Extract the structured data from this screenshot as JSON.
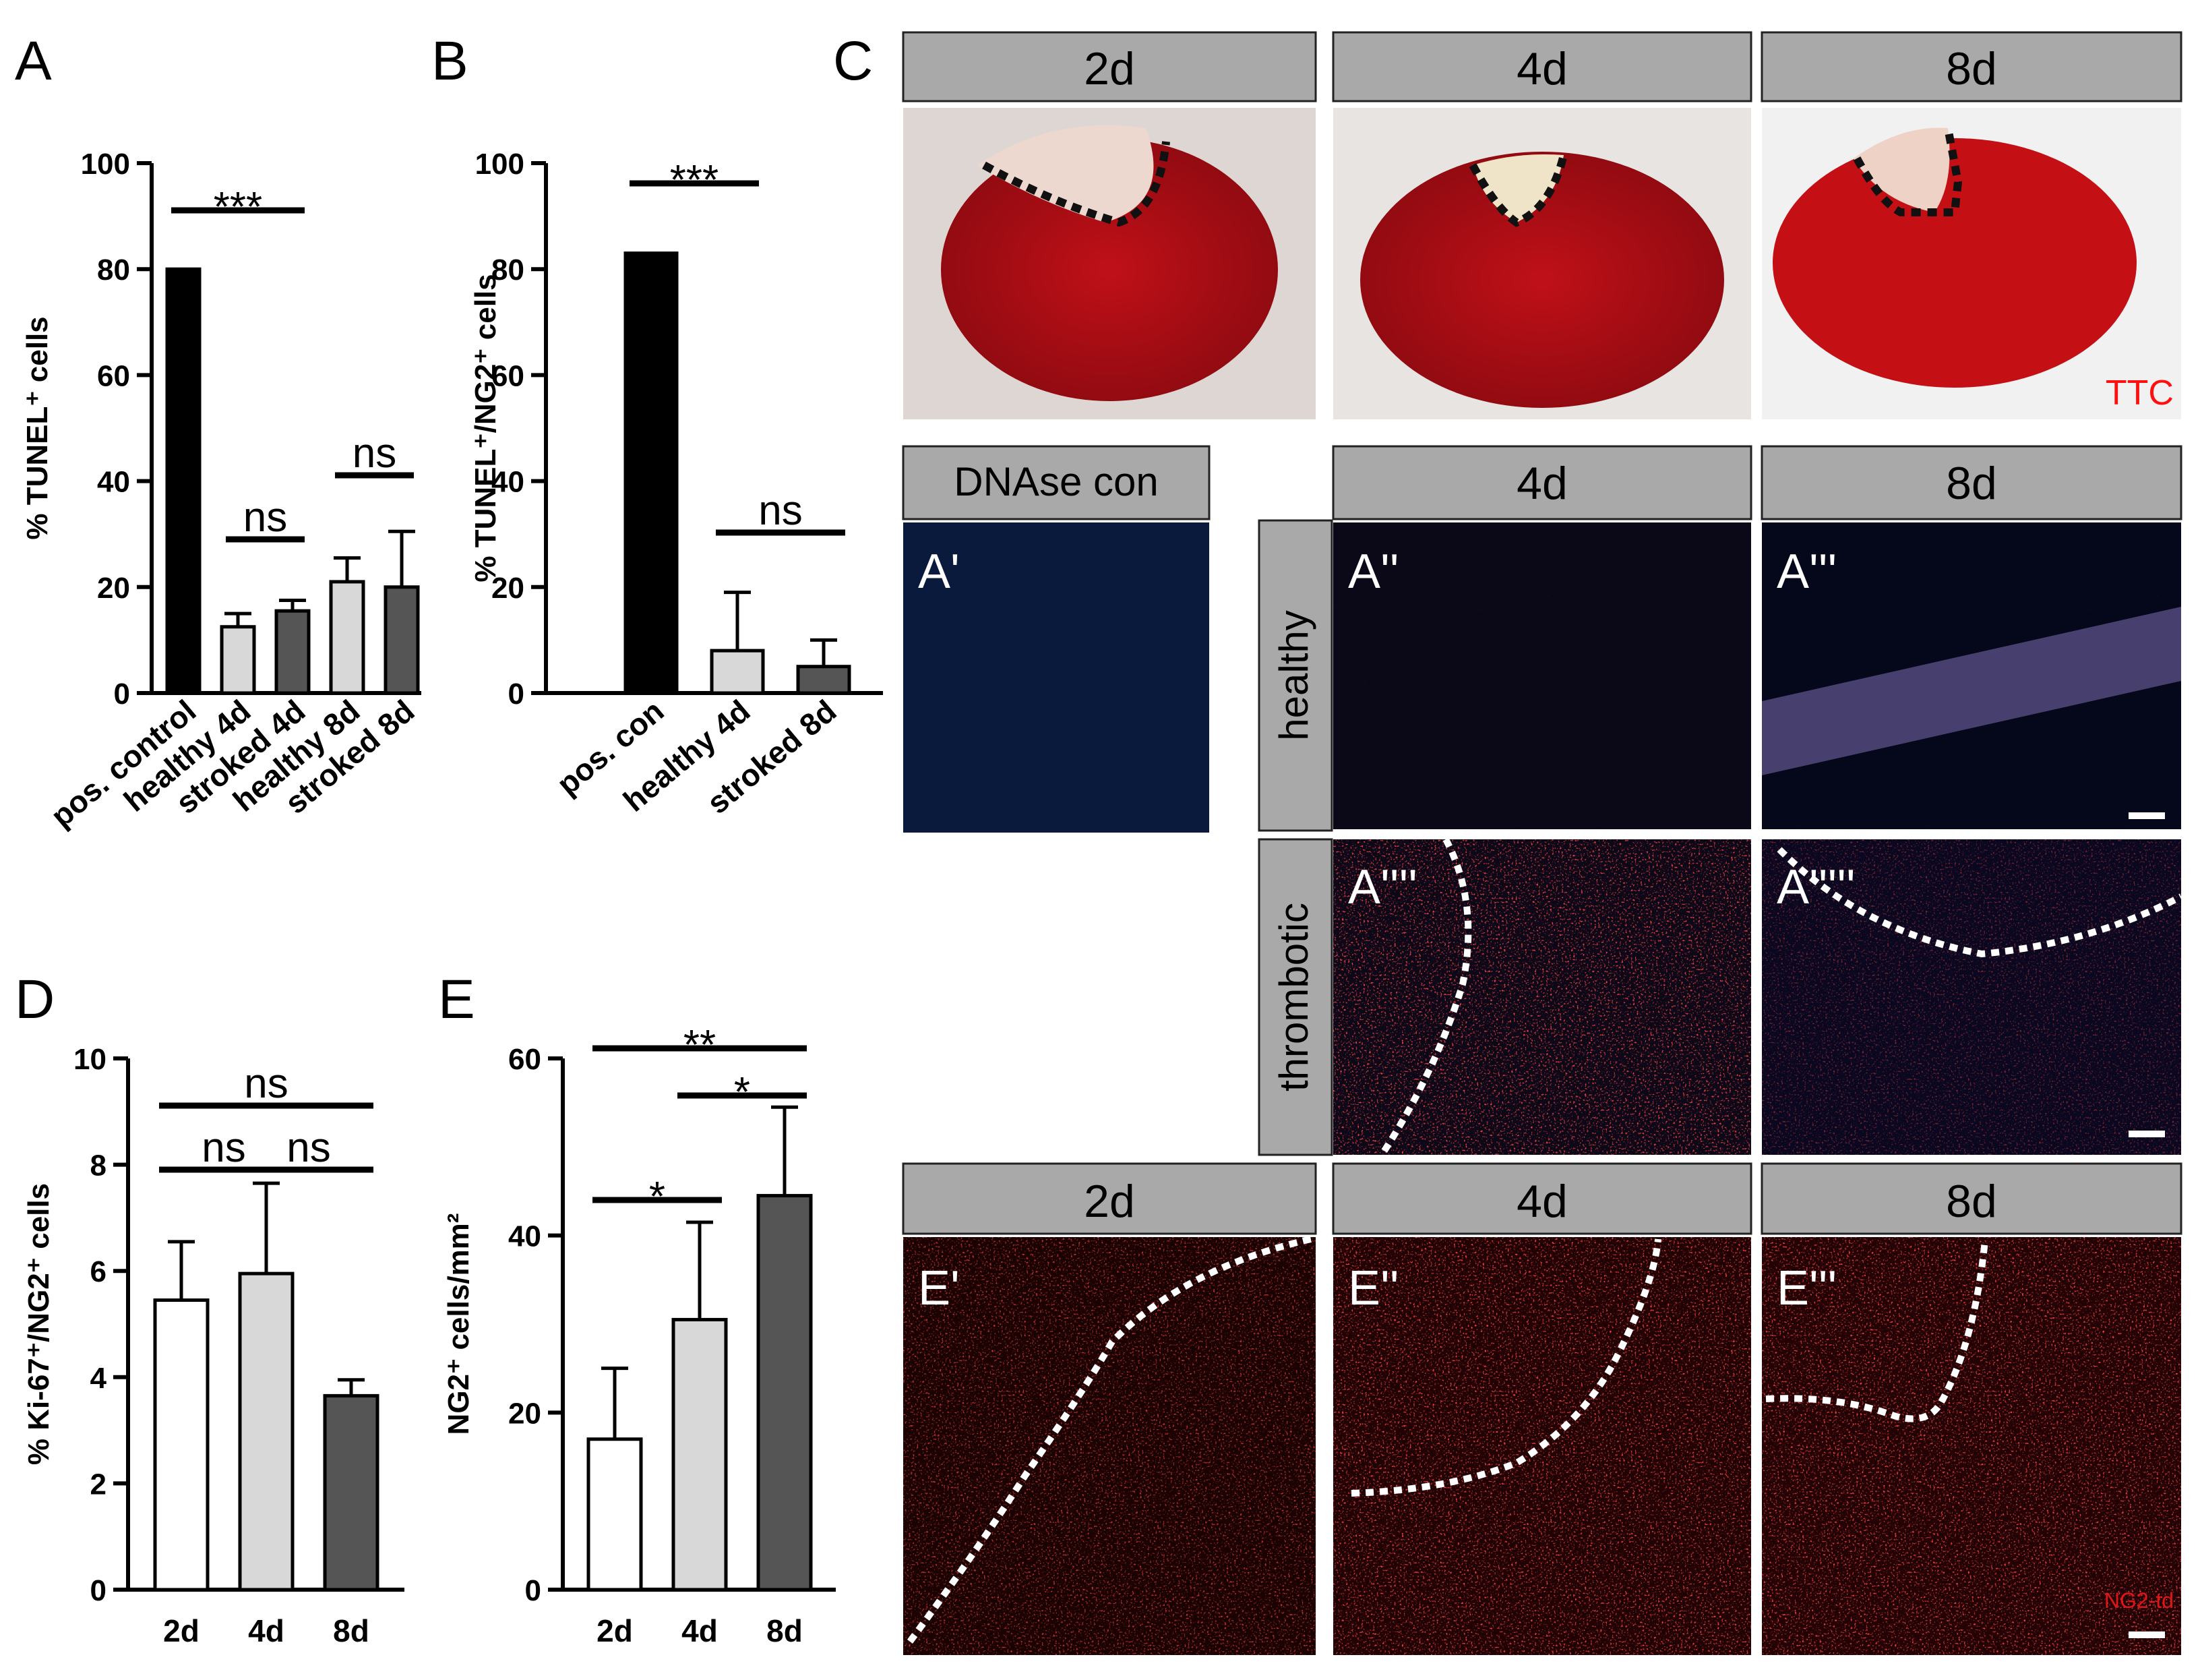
{
  "panel_labels": {
    "A": "A",
    "B": "B",
    "C": "C",
    "D": "D",
    "E": "E"
  },
  "chart_data": [
    {
      "id": "A",
      "type": "bar",
      "ylabel": "% TUNEL⁺ cells",
      "ylim": [
        0,
        100
      ],
      "yticks": [
        "0",
        "20",
        "40",
        "60",
        "80",
        "100"
      ],
      "categories": [
        "pos. control",
        "healthy 4d",
        "stroked 4d",
        "healthy 8d",
        "stroked 8d"
      ],
      "values": [
        80,
        12.5,
        15.5,
        21,
        20
      ],
      "errors": [
        0,
        2.5,
        2,
        4.5,
        10.5
      ],
      "fills": [
        "#000000",
        "#d8d8d8",
        "#555555",
        "#d8d8d8",
        "#555555"
      ],
      "significance": [
        {
          "from": 0,
          "to": 2,
          "label": "***"
        },
        {
          "from": 1,
          "to": 2,
          "label": "ns"
        },
        {
          "from": 3,
          "to": 4,
          "label": "ns"
        }
      ]
    },
    {
      "id": "B",
      "type": "bar",
      "ylabel": "% TUNEL⁺/NG2⁺ cells",
      "ylim": [
        0,
        100
      ],
      "yticks": [
        "0",
        "20",
        "40",
        "60",
        "80",
        "100"
      ],
      "categories": [
        "pos. con",
        "healthy 4d",
        "stroked 8d"
      ],
      "values": [
        83,
        8,
        5
      ],
      "errors": [
        0,
        11,
        5
      ],
      "fills": [
        "#000000",
        "#d8d8d8",
        "#555555"
      ],
      "significance": [
        {
          "from": 0,
          "to": 1,
          "label": "***"
        },
        {
          "from": 1,
          "to": 2,
          "label": "ns"
        }
      ]
    },
    {
      "id": "D",
      "type": "bar",
      "ylabel": "% Ki-67⁺/NG2⁺ cells",
      "ylim": [
        0,
        10
      ],
      "yticks": [
        "0",
        "2",
        "4",
        "6",
        "8",
        "10"
      ],
      "categories": [
        "2d",
        "4d",
        "8d"
      ],
      "values": [
        5.45,
        5.95,
        3.65
      ],
      "errors": [
        1.1,
        1.7,
        0.3
      ],
      "fills": [
        "#ffffff",
        "#d8d8d8",
        "#555555"
      ],
      "significance": [
        {
          "from": 0,
          "to": 2,
          "label": "ns"
        },
        {
          "from": 0,
          "to": 1,
          "label": "ns"
        },
        {
          "from": 1,
          "to": 2,
          "label": "ns"
        }
      ]
    },
    {
      "id": "E",
      "type": "bar",
      "ylabel": "NG2⁺ cells/mm²",
      "ylim": [
        0,
        60
      ],
      "yticks": [
        "0",
        "20",
        "40",
        "60"
      ],
      "categories": [
        "2d",
        "4d",
        "8d"
      ],
      "values": [
        17,
        30.5,
        44.5
      ],
      "errors": [
        8,
        11,
        10
      ],
      "fills": [
        "#ffffff",
        "#d8d8d8",
        "#555555"
      ],
      "significance": [
        {
          "from": 0,
          "to": 2,
          "label": "**"
        },
        {
          "from": 1,
          "to": 2,
          "label": "*"
        },
        {
          "from": 0,
          "to": 1,
          "label": "*"
        }
      ]
    }
  ],
  "panel_c": {
    "ttc_headers": [
      "2d",
      "4d",
      "8d"
    ],
    "ttc_label": "TTC",
    "dnase_header": "DNAse con",
    "tunel_headers": [
      "4d",
      "8d"
    ],
    "row_labels": [
      "healthy",
      "thrombotic"
    ],
    "image_labels": {
      "a1": "A'",
      "a2": "A''",
      "a3": "A'''",
      "a4": "A''''",
      "a5": "A'''''"
    }
  },
  "panel_e_images": {
    "headers": [
      "2d",
      "4d",
      "8d"
    ],
    "image_labels": [
      "E'",
      "E''",
      "E'''"
    ],
    "stain_label": "NG2-td"
  }
}
